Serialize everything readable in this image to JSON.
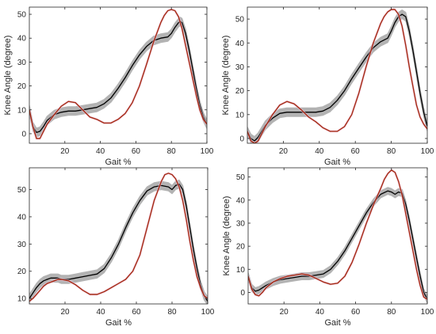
{
  "colors": {
    "band": "#b3b3b3",
    "mean": "#000000",
    "measured": "#a32b12",
    "highlight": "#f5c6e3"
  },
  "chart_data": [
    {
      "type": "line",
      "xlabel": "Gait %",
      "ylabel": "Knee Angle (degree)",
      "xlim": [
        0,
        100
      ],
      "ylim": [
        -4,
        53
      ],
      "xticks": [
        20,
        40,
        60,
        80,
        100
      ],
      "yticks": [
        0,
        10,
        20,
        30,
        40,
        50
      ],
      "series": [
        {
          "role": "mean-with-band",
          "x": [
            0,
            2,
            4,
            6,
            8,
            10,
            14,
            18,
            22,
            26,
            30,
            34,
            38,
            42,
            46,
            50,
            54,
            58,
            62,
            66,
            70,
            74,
            78,
            80,
            82,
            84,
            85,
            86,
            88,
            90,
            92,
            94,
            96,
            98,
            100
          ],
          "y": [
            10,
            3,
            0.5,
            1,
            3,
            5.5,
            8,
            9,
            9.5,
            9.5,
            10,
            10.5,
            11,
            12.5,
            15,
            19,
            23.5,
            28.5,
            33,
            36.5,
            39,
            40,
            40.5,
            42,
            44.5,
            46.5,
            47,
            46.5,
            42,
            35,
            27,
            19,
            12,
            7,
            4
          ],
          "band": 1.8
        },
        {
          "role": "measured",
          "x": [
            0,
            2,
            4,
            6,
            8,
            10,
            14,
            18,
            22,
            26,
            28,
            30,
            32,
            34,
            38,
            42,
            46,
            50,
            54,
            58,
            62,
            66,
            70,
            74,
            76,
            78,
            80,
            82,
            84,
            86,
            88,
            90,
            92,
            94,
            96,
            98,
            100
          ],
          "y": [
            10,
            3,
            -2,
            -2,
            1,
            4,
            8,
            11.5,
            13.5,
            13,
            11.5,
            10,
            8.5,
            7,
            6,
            4.5,
            4.5,
            6,
            8.5,
            13,
            20,
            29,
            38.5,
            46.5,
            49.5,
            51.5,
            52,
            51.5,
            49,
            44,
            37,
            30,
            23,
            16,
            10,
            6,
            4
          ]
        }
      ]
    },
    {
      "type": "line",
      "xlabel": "Gait %",
      "ylabel": "Knee Angle (degree)",
      "xlim": [
        0,
        100
      ],
      "ylim": [
        -2,
        55
      ],
      "xticks": [
        20,
        40,
        60,
        80,
        100
      ],
      "yticks": [
        0,
        10,
        20,
        30,
        40,
        50
      ],
      "series": [
        {
          "role": "mean-with-band",
          "x": [
            0,
            2,
            4,
            6,
            8,
            10,
            14,
            18,
            22,
            26,
            30,
            34,
            38,
            42,
            46,
            50,
            54,
            58,
            62,
            66,
            70,
            74,
            78,
            80,
            82,
            84,
            86,
            88,
            90,
            92,
            94,
            96,
            98,
            100
          ],
          "y": [
            3,
            0,
            -1,
            0.5,
            3,
            5.5,
            8.5,
            10.5,
            11,
            11,
            11,
            11,
            11,
            11.5,
            13,
            16,
            20,
            25,
            29.5,
            34,
            38,
            40.5,
            42,
            45,
            48.5,
            51,
            52,
            51,
            45,
            37,
            28,
            19,
            11,
            5
          ],
          "band": 1.8
        },
        {
          "role": "measured",
          "x": [
            0,
            2,
            4,
            6,
            8,
            10,
            14,
            18,
            22,
            26,
            30,
            34,
            38,
            42,
            46,
            50,
            54,
            58,
            62,
            66,
            70,
            74,
            76,
            78,
            80,
            82,
            84,
            86,
            88,
            90,
            92,
            94,
            96,
            98,
            100
          ],
          "y": [
            3,
            -1,
            -2,
            -1,
            2,
            5,
            10,
            14,
            15.5,
            14.5,
            12,
            9,
            7,
            4.5,
            3,
            3,
            5,
            10,
            19,
            30,
            40,
            48,
            51,
            53,
            54,
            54,
            52,
            47,
            39,
            30,
            22,
            14,
            9,
            6,
            4
          ]
        }
      ]
    },
    {
      "type": "line",
      "xlabel": "Gait %",
      "ylabel": "",
      "xlim": [
        0,
        100
      ],
      "ylim": [
        8,
        58
      ],
      "xticks": [
        20,
        40,
        60,
        80,
        100
      ],
      "yticks": [
        10,
        20,
        30,
        40,
        50
      ],
      "series": [
        {
          "role": "mean-with-band",
          "x": [
            0,
            2,
            4,
            6,
            8,
            10,
            12,
            14,
            16,
            18,
            22,
            26,
            30,
            34,
            38,
            42,
            46,
            50,
            54,
            58,
            62,
            66,
            70,
            74,
            78,
            80,
            82,
            84,
            86,
            88,
            90,
            92,
            94,
            96,
            98,
            100
          ],
          "y": [
            10,
            12,
            14,
            15.5,
            16.5,
            17,
            17.5,
            17.5,
            17.5,
            17,
            17,
            17.5,
            18,
            18.5,
            19,
            21,
            25,
            30,
            36,
            41.5,
            46,
            49.5,
            51,
            51.5,
            51,
            50,
            51.5,
            52,
            50,
            44,
            36,
            28,
            21,
            15,
            11,
            9
          ],
          "band": 1.5
        },
        {
          "role": "measured",
          "x": [
            0,
            2,
            4,
            6,
            8,
            10,
            12,
            14,
            16,
            18,
            22,
            26,
            30,
            34,
            38,
            42,
            46,
            50,
            54,
            58,
            62,
            66,
            70,
            74,
            76,
            78,
            80,
            82,
            84,
            86,
            88,
            90,
            92,
            94,
            96,
            98,
            100
          ],
          "y": [
            9,
            10,
            11.5,
            13,
            14.5,
            15.5,
            16,
            16.5,
            17,
            17,
            16.5,
            15,
            13,
            11.5,
            11.5,
            12.5,
            14,
            15.5,
            17,
            20,
            26,
            36,
            46,
            53,
            55.5,
            56,
            55.5,
            54,
            51,
            46,
            39,
            31,
            24,
            18,
            14,
            11,
            10
          ]
        }
      ]
    },
    {
      "type": "line",
      "xlabel": "Gait %",
      "ylabel": "Knee Angle (degree)",
      "xlim": [
        0,
        100
      ],
      "ylim": [
        -5,
        54
      ],
      "xticks": [
        20,
        40,
        60,
        80,
        100
      ],
      "yticks": [
        0,
        10,
        20,
        30,
        40,
        50
      ],
      "series": [
        {
          "role": "mean-with-band",
          "x": [
            0,
            2,
            4,
            6,
            8,
            10,
            14,
            18,
            22,
            26,
            30,
            34,
            38,
            42,
            46,
            50,
            54,
            58,
            62,
            66,
            70,
            74,
            78,
            80,
            82,
            84,
            86,
            88,
            90,
            92,
            94,
            96,
            98,
            100
          ],
          "y": [
            7,
            2,
            0.5,
            1,
            2,
            3,
            4.5,
            5.5,
            6,
            6.5,
            7,
            7,
            7.5,
            8,
            10,
            13.5,
            18,
            23.5,
            29,
            34.5,
            39,
            42.5,
            44,
            43.5,
            42.5,
            43.5,
            43,
            38,
            31,
            23,
            15,
            7,
            0,
            -3
          ],
          "band": 1.5
        },
        {
          "role": "measured",
          "x": [
            0,
            2,
            4,
            6,
            8,
            10,
            14,
            18,
            22,
            26,
            30,
            34,
            38,
            42,
            46,
            50,
            54,
            58,
            62,
            66,
            70,
            74,
            76,
            78,
            80,
            82,
            84,
            86,
            88,
            90,
            92,
            94,
            96,
            98,
            100
          ],
          "y": [
            7,
            1.5,
            -1,
            -1.5,
            0,
            2,
            4.5,
            6,
            7,
            7.5,
            8,
            7.5,
            6,
            4.5,
            3.5,
            4,
            7,
            13,
            21,
            30,
            38,
            45,
            49,
            51.5,
            53,
            52,
            48,
            42,
            34,
            26,
            18,
            10,
            3,
            -2,
            -3
          ]
        }
      ]
    }
  ]
}
